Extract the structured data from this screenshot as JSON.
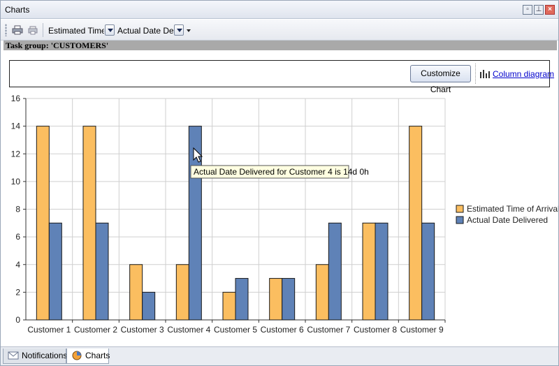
{
  "window": {
    "title": "Charts"
  },
  "toolbar": {
    "combo1_value": "Estimated Time o",
    "combo2_value": "Actual Date Deliv"
  },
  "task_group_label": "Task group: 'CUSTOMERS'",
  "chart_tools": {
    "customize_label": "Customize Chart",
    "column_diagram_label": "Column diagram"
  },
  "tooltip": "Actual Date Delivered for Customer 4 is 14d 0h",
  "tabs": [
    {
      "label": "Notifications",
      "icon": "envelope-icon"
    },
    {
      "label": "Charts",
      "icon": "chart-icon"
    }
  ],
  "colors": {
    "series1": "#fbbe60",
    "series2": "#5f82b7",
    "grid": "#cfcfcf"
  },
  "chart_data": {
    "type": "bar",
    "categories": [
      "Customer 1",
      "Customer 2",
      "Customer 3",
      "Customer 4",
      "Customer 5",
      "Customer 6",
      "Customer 7",
      "Customer 8",
      "Customer 9"
    ],
    "series": [
      {
        "name": "Estimated Time of Arrival",
        "values": [
          14,
          14,
          4,
          4,
          2,
          3,
          4,
          7,
          14
        ]
      },
      {
        "name": "Actual Date Delivered",
        "values": [
          7,
          7,
          2,
          14,
          3,
          3,
          7,
          7,
          7
        ]
      }
    ],
    "ylim": [
      0,
      16
    ],
    "yticks": [
      0,
      2,
      4,
      6,
      8,
      10,
      12,
      14,
      16
    ],
    "grid": true,
    "legend": "right"
  }
}
